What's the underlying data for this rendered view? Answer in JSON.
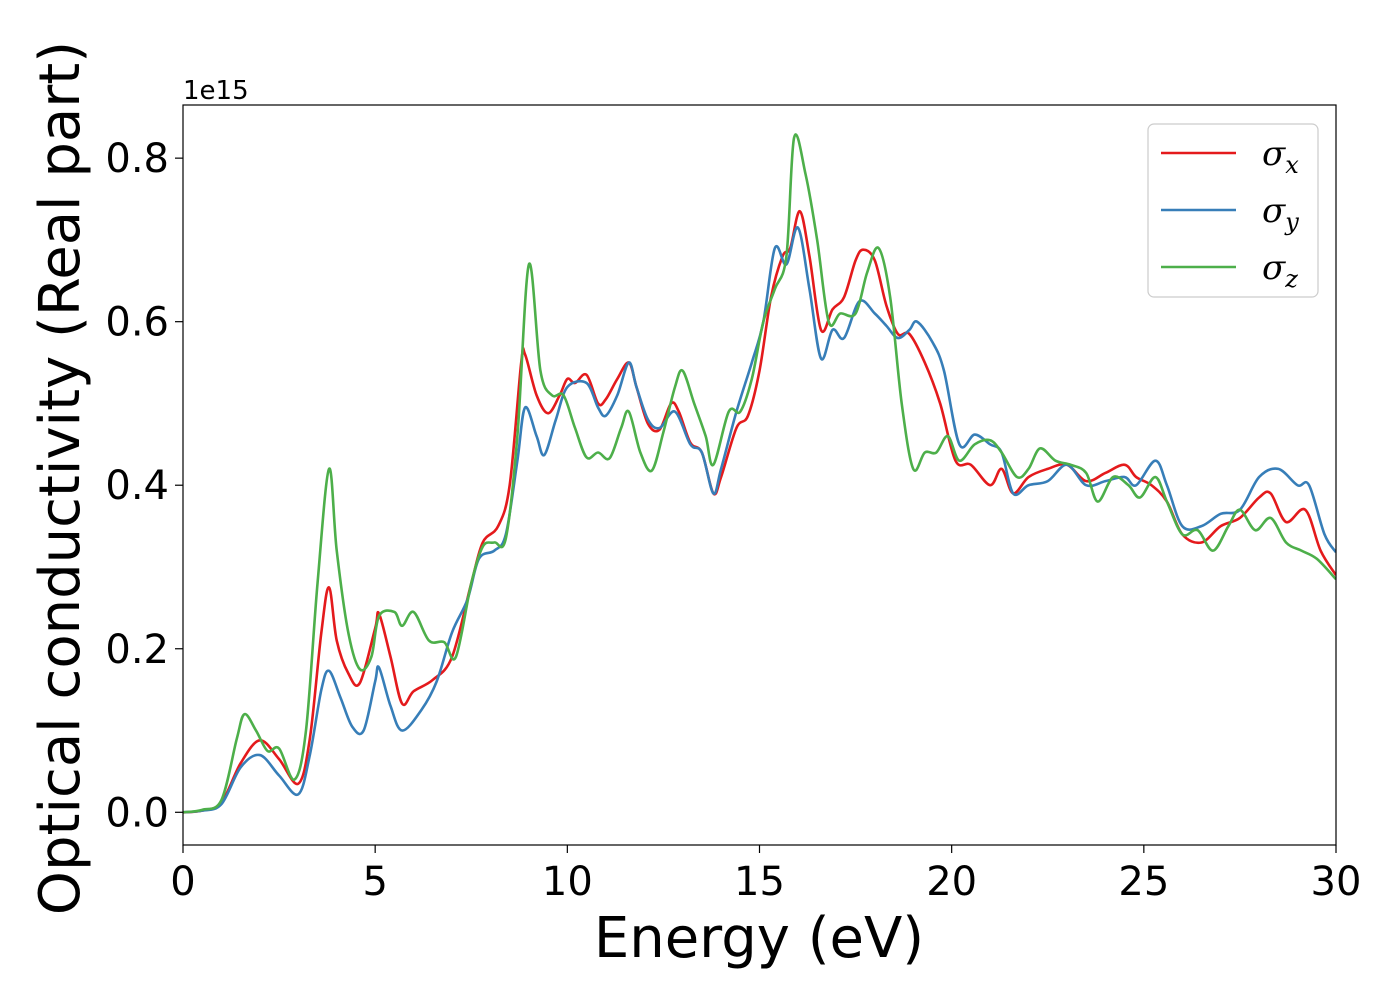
{
  "chart_data": {
    "type": "line",
    "title": "",
    "xlabel": "Energy (eV)",
    "ylabel": "Optical conductivity (Real part)",
    "y_offset_label": "1e15",
    "xlim": [
      0,
      30
    ],
    "ylim": [
      -0.04,
      0.865
    ],
    "x_ticks": [
      0,
      5,
      10,
      15,
      20,
      25,
      30
    ],
    "y_ticks": [
      0.0,
      0.2,
      0.4,
      0.6,
      0.8
    ],
    "grid": false,
    "legend_position": "top-right",
    "legend": [
      {
        "base": "σ",
        "sub": "x"
      },
      {
        "base": "σ",
        "sub": "y"
      },
      {
        "base": "σ",
        "sub": "z"
      }
    ],
    "series": [
      {
        "name": "σx",
        "color": "#e41a1c",
        "points": [
          [
            0,
            0
          ],
          [
            0.5,
            0.002
          ],
          [
            1,
            0.012
          ],
          [
            1.5,
            0.06
          ],
          [
            2,
            0.088
          ],
          [
            2.5,
            0.065
          ],
          [
            3,
            0.035
          ],
          [
            3.3,
            0.09
          ],
          [
            3.6,
            0.22
          ],
          [
            3.8,
            0.275
          ],
          [
            4,
            0.21
          ],
          [
            4.3,
            0.17
          ],
          [
            4.6,
            0.158
          ],
          [
            5,
            0.225
          ],
          [
            5.1,
            0.243
          ],
          [
            5.4,
            0.19
          ],
          [
            5.7,
            0.133
          ],
          [
            6,
            0.148
          ],
          [
            6.5,
            0.162
          ],
          [
            7,
            0.19
          ],
          [
            7.5,
            0.28
          ],
          [
            7.8,
            0.33
          ],
          [
            8.2,
            0.35
          ],
          [
            8.5,
            0.4
          ],
          [
            8.8,
            0.55
          ],
          [
            8.9,
            0.56
          ],
          [
            9.2,
            0.51
          ],
          [
            9.5,
            0.488
          ],
          [
            9.8,
            0.51
          ],
          [
            10,
            0.53
          ],
          [
            10.2,
            0.525
          ],
          [
            10.5,
            0.535
          ],
          [
            10.8,
            0.5
          ],
          [
            11,
            0.505
          ],
          [
            11.3,
            0.53
          ],
          [
            11.6,
            0.55
          ],
          [
            11.8,
            0.52
          ],
          [
            12.1,
            0.475
          ],
          [
            12.4,
            0.468
          ],
          [
            12.7,
            0.5
          ],
          [
            12.9,
            0.49
          ],
          [
            13.2,
            0.452
          ],
          [
            13.5,
            0.44
          ],
          [
            13.8,
            0.39
          ],
          [
            14,
            0.41
          ],
          [
            14.4,
            0.47
          ],
          [
            14.7,
            0.485
          ],
          [
            15,
            0.54
          ],
          [
            15.3,
            0.63
          ],
          [
            15.6,
            0.68
          ],
          [
            15.8,
            0.69
          ],
          [
            16.05,
            0.735
          ],
          [
            16.3,
            0.68
          ],
          [
            16.6,
            0.59
          ],
          [
            16.9,
            0.615
          ],
          [
            17.2,
            0.63
          ],
          [
            17.5,
            0.675
          ],
          [
            17.7,
            0.688
          ],
          [
            18,
            0.675
          ],
          [
            18.3,
            0.62
          ],
          [
            18.6,
            0.585
          ],
          [
            18.9,
            0.585
          ],
          [
            19.3,
            0.55
          ],
          [
            19.7,
            0.5
          ],
          [
            20.1,
            0.43
          ],
          [
            20.5,
            0.425
          ],
          [
            21,
            0.4
          ],
          [
            21.3,
            0.42
          ],
          [
            21.6,
            0.39
          ],
          [
            22,
            0.41
          ],
          [
            22.5,
            0.42
          ],
          [
            23,
            0.425
          ],
          [
            23.5,
            0.405
          ],
          [
            24,
            0.415
          ],
          [
            24.5,
            0.425
          ],
          [
            24.8,
            0.41
          ],
          [
            25.2,
            0.4
          ],
          [
            25.6,
            0.38
          ],
          [
            26,
            0.34
          ],
          [
            26.5,
            0.33
          ],
          [
            27,
            0.35
          ],
          [
            27.5,
            0.36
          ],
          [
            28,
            0.385
          ],
          [
            28.3,
            0.39
          ],
          [
            28.7,
            0.355
          ],
          [
            29.2,
            0.37
          ],
          [
            29.6,
            0.32
          ],
          [
            30,
            0.29
          ]
        ]
      },
      {
        "name": "σy",
        "color": "#377eb8",
        "points": [
          [
            0,
            0
          ],
          [
            0.5,
            0.002
          ],
          [
            1,
            0.01
          ],
          [
            1.5,
            0.055
          ],
          [
            2,
            0.07
          ],
          [
            2.5,
            0.045
          ],
          [
            3,
            0.022
          ],
          [
            3.3,
            0.07
          ],
          [
            3.6,
            0.15
          ],
          [
            3.8,
            0.173
          ],
          [
            4.1,
            0.14
          ],
          [
            4.4,
            0.105
          ],
          [
            4.7,
            0.1
          ],
          [
            5,
            0.16
          ],
          [
            5.1,
            0.177
          ],
          [
            5.4,
            0.13
          ],
          [
            5.7,
            0.1
          ],
          [
            6.2,
            0.125
          ],
          [
            6.6,
            0.16
          ],
          [
            7,
            0.22
          ],
          [
            7.4,
            0.26
          ],
          [
            7.7,
            0.31
          ],
          [
            8.1,
            0.32
          ],
          [
            8.4,
            0.34
          ],
          [
            8.7,
            0.43
          ],
          [
            8.9,
            0.495
          ],
          [
            9.2,
            0.46
          ],
          [
            9.4,
            0.437
          ],
          [
            9.7,
            0.48
          ],
          [
            10,
            0.52
          ],
          [
            10.5,
            0.525
          ],
          [
            10.8,
            0.495
          ],
          [
            11,
            0.485
          ],
          [
            11.3,
            0.51
          ],
          [
            11.6,
            0.55
          ],
          [
            11.8,
            0.52
          ],
          [
            12.1,
            0.48
          ],
          [
            12.4,
            0.47
          ],
          [
            12.8,
            0.49
          ],
          [
            13.2,
            0.45
          ],
          [
            13.5,
            0.44
          ],
          [
            13.8,
            0.39
          ],
          [
            14,
            0.42
          ],
          [
            14.4,
            0.49
          ],
          [
            14.8,
            0.55
          ],
          [
            15.1,
            0.6
          ],
          [
            15.4,
            0.69
          ],
          [
            15.7,
            0.67
          ],
          [
            16,
            0.715
          ],
          [
            16.3,
            0.64
          ],
          [
            16.6,
            0.555
          ],
          [
            16.9,
            0.59
          ],
          [
            17.2,
            0.58
          ],
          [
            17.6,
            0.625
          ],
          [
            18,
            0.61
          ],
          [
            18.3,
            0.595
          ],
          [
            18.6,
            0.58
          ],
          [
            18.9,
            0.59
          ],
          [
            19.1,
            0.6
          ],
          [
            19.5,
            0.575
          ],
          [
            19.8,
            0.54
          ],
          [
            20.2,
            0.45
          ],
          [
            20.6,
            0.462
          ],
          [
            21,
            0.45
          ],
          [
            21.3,
            0.44
          ],
          [
            21.6,
            0.39
          ],
          [
            22,
            0.4
          ],
          [
            22.5,
            0.405
          ],
          [
            23,
            0.425
          ],
          [
            23.5,
            0.4
          ],
          [
            24,
            0.405
          ],
          [
            24.5,
            0.41
          ],
          [
            24.8,
            0.4
          ],
          [
            25.3,
            0.43
          ],
          [
            25.6,
            0.4
          ],
          [
            26,
            0.35
          ],
          [
            26.5,
            0.35
          ],
          [
            27,
            0.365
          ],
          [
            27.5,
            0.37
          ],
          [
            28,
            0.41
          ],
          [
            28.5,
            0.42
          ],
          [
            29,
            0.4
          ],
          [
            29.3,
            0.4
          ],
          [
            29.7,
            0.34
          ],
          [
            30,
            0.318
          ]
        ]
      },
      {
        "name": "σz",
        "color": "#4daf4a",
        "points": [
          [
            0,
            0
          ],
          [
            0.5,
            0.003
          ],
          [
            1,
            0.015
          ],
          [
            1.4,
            0.09
          ],
          [
            1.6,
            0.12
          ],
          [
            1.9,
            0.1
          ],
          [
            2.2,
            0.075
          ],
          [
            2.5,
            0.078
          ],
          [
            2.9,
            0.04
          ],
          [
            3.2,
            0.1
          ],
          [
            3.5,
            0.28
          ],
          [
            3.8,
            0.42
          ],
          [
            4,
            0.32
          ],
          [
            4.3,
            0.22
          ],
          [
            4.6,
            0.175
          ],
          [
            4.9,
            0.19
          ],
          [
            5.1,
            0.24
          ],
          [
            5.5,
            0.245
          ],
          [
            5.7,
            0.228
          ],
          [
            6,
            0.245
          ],
          [
            6.4,
            0.21
          ],
          [
            6.8,
            0.208
          ],
          [
            7.1,
            0.19
          ],
          [
            7.5,
            0.28
          ],
          [
            7.8,
            0.325
          ],
          [
            8.1,
            0.33
          ],
          [
            8.4,
            0.335
          ],
          [
            8.7,
            0.46
          ],
          [
            9,
            0.67
          ],
          [
            9.3,
            0.54
          ],
          [
            9.6,
            0.51
          ],
          [
            9.9,
            0.51
          ],
          [
            10.2,
            0.47
          ],
          [
            10.5,
            0.434
          ],
          [
            10.8,
            0.44
          ],
          [
            11.1,
            0.433
          ],
          [
            11.4,
            0.47
          ],
          [
            11.6,
            0.49
          ],
          [
            11.9,
            0.44
          ],
          [
            12.2,
            0.418
          ],
          [
            12.5,
            0.465
          ],
          [
            12.8,
            0.52
          ],
          [
            13,
            0.54
          ],
          [
            13.3,
            0.5
          ],
          [
            13.6,
            0.46
          ],
          [
            13.8,
            0.425
          ],
          [
            14.2,
            0.49
          ],
          [
            14.5,
            0.49
          ],
          [
            14.8,
            0.53
          ],
          [
            15.1,
            0.6
          ],
          [
            15.4,
            0.64
          ],
          [
            15.7,
            0.68
          ],
          [
            15.9,
            0.825
          ],
          [
            16.2,
            0.78
          ],
          [
            16.5,
            0.7
          ],
          [
            16.8,
            0.6
          ],
          [
            17.1,
            0.61
          ],
          [
            17.5,
            0.61
          ],
          [
            17.8,
            0.66
          ],
          [
            18.1,
            0.69
          ],
          [
            18.4,
            0.63
          ],
          [
            18.7,
            0.5
          ],
          [
            19,
            0.42
          ],
          [
            19.3,
            0.44
          ],
          [
            19.6,
            0.44
          ],
          [
            19.9,
            0.46
          ],
          [
            20.2,
            0.43
          ],
          [
            20.6,
            0.45
          ],
          [
            21,
            0.455
          ],
          [
            21.3,
            0.44
          ],
          [
            21.7,
            0.41
          ],
          [
            22,
            0.42
          ],
          [
            22.3,
            0.445
          ],
          [
            22.7,
            0.43
          ],
          [
            23.1,
            0.425
          ],
          [
            23.5,
            0.415
          ],
          [
            23.8,
            0.38
          ],
          [
            24.2,
            0.41
          ],
          [
            24.6,
            0.4
          ],
          [
            24.9,
            0.385
          ],
          [
            25.3,
            0.41
          ],
          [
            25.6,
            0.38
          ],
          [
            26,
            0.34
          ],
          [
            26.4,
            0.345
          ],
          [
            26.8,
            0.32
          ],
          [
            27.2,
            0.35
          ],
          [
            27.5,
            0.37
          ],
          [
            27.9,
            0.345
          ],
          [
            28.3,
            0.36
          ],
          [
            28.7,
            0.33
          ],
          [
            29.1,
            0.32
          ],
          [
            29.5,
            0.31
          ],
          [
            30,
            0.285
          ]
        ]
      }
    ]
  }
}
